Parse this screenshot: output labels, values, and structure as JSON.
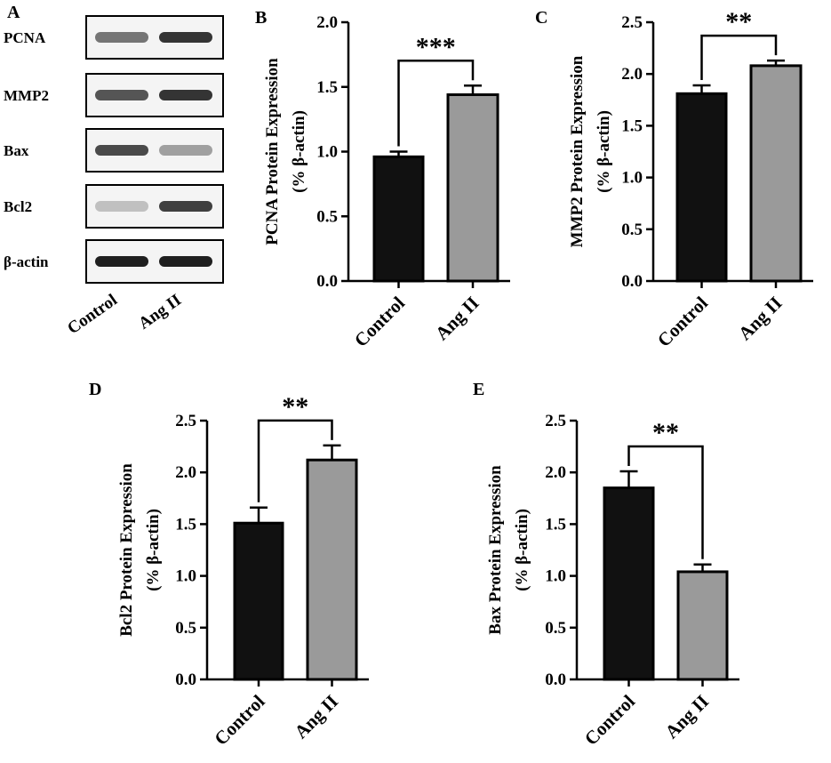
{
  "western_blot": {
    "panel_letter": "A",
    "rows": [
      {
        "label": "PCNA",
        "bands": [
          0.55,
          0.85
        ]
      },
      {
        "label": "MMP2",
        "bands": [
          0.7,
          0.85
        ]
      },
      {
        "label": "Bax",
        "bands": [
          0.75,
          0.35
        ]
      },
      {
        "label": "Bcl2",
        "bands": [
          0.2,
          0.8
        ]
      },
      {
        "label": "β-actin",
        "bands": [
          0.95,
          0.95
        ]
      }
    ],
    "lanes": [
      "Control",
      "Ang II"
    ]
  },
  "chart_data": [
    {
      "panel_letter": "B",
      "type": "bar",
      "categories": [
        "Control",
        "Ang II"
      ],
      "values": [
        0.96,
        1.44
      ],
      "errors": [
        0.04,
        0.07
      ],
      "ylabel_line1": "PCNA Protein Expression",
      "ylabel_line2": "(% β-actin)",
      "ylim": [
        0,
        2.0
      ],
      "yticks": [
        "0.0",
        "0.5",
        "1.0",
        "1.5",
        "2.0"
      ],
      "significance": "***",
      "colors": [
        "#111111",
        "#9a9a9a"
      ]
    },
    {
      "panel_letter": "C",
      "type": "bar",
      "categories": [
        "Control",
        "Ang II"
      ],
      "values": [
        1.81,
        2.08
      ],
      "errors": [
        0.08,
        0.05
      ],
      "ylabel_line1": "MMP2 Protein Expression",
      "ylabel_line2": "(% β-actin)",
      "ylim": [
        0,
        2.5
      ],
      "yticks": [
        "0.0",
        "0.5",
        "1.0",
        "1.5",
        "2.0",
        "2.5"
      ],
      "significance": "**",
      "colors": [
        "#111111",
        "#9a9a9a"
      ]
    },
    {
      "panel_letter": "D",
      "type": "bar",
      "categories": [
        "Control",
        "Ang II"
      ],
      "values": [
        1.51,
        2.12
      ],
      "errors": [
        0.15,
        0.14
      ],
      "ylabel_line1": "Bcl2 Protein Expression",
      "ylabel_line2": "(% β-actin)",
      "ylim": [
        0,
        2.5
      ],
      "yticks": [
        "0.0",
        "0.5",
        "1.0",
        "1.5",
        "2.0",
        "2.5"
      ],
      "significance": "**",
      "colors": [
        "#111111",
        "#9a9a9a"
      ]
    },
    {
      "panel_letter": "E",
      "type": "bar",
      "categories": [
        "Control",
        "Ang II"
      ],
      "values": [
        1.85,
        1.04
      ],
      "errors": [
        0.16,
        0.07
      ],
      "ylabel_line1": "Bax Protein Expression",
      "ylabel_line2": "(% β-actin)",
      "ylim": [
        0,
        2.5
      ],
      "yticks": [
        "0.0",
        "0.5",
        "1.0",
        "1.5",
        "2.0",
        "2.5"
      ],
      "significance": "**",
      "colors": [
        "#111111",
        "#9a9a9a"
      ]
    }
  ]
}
